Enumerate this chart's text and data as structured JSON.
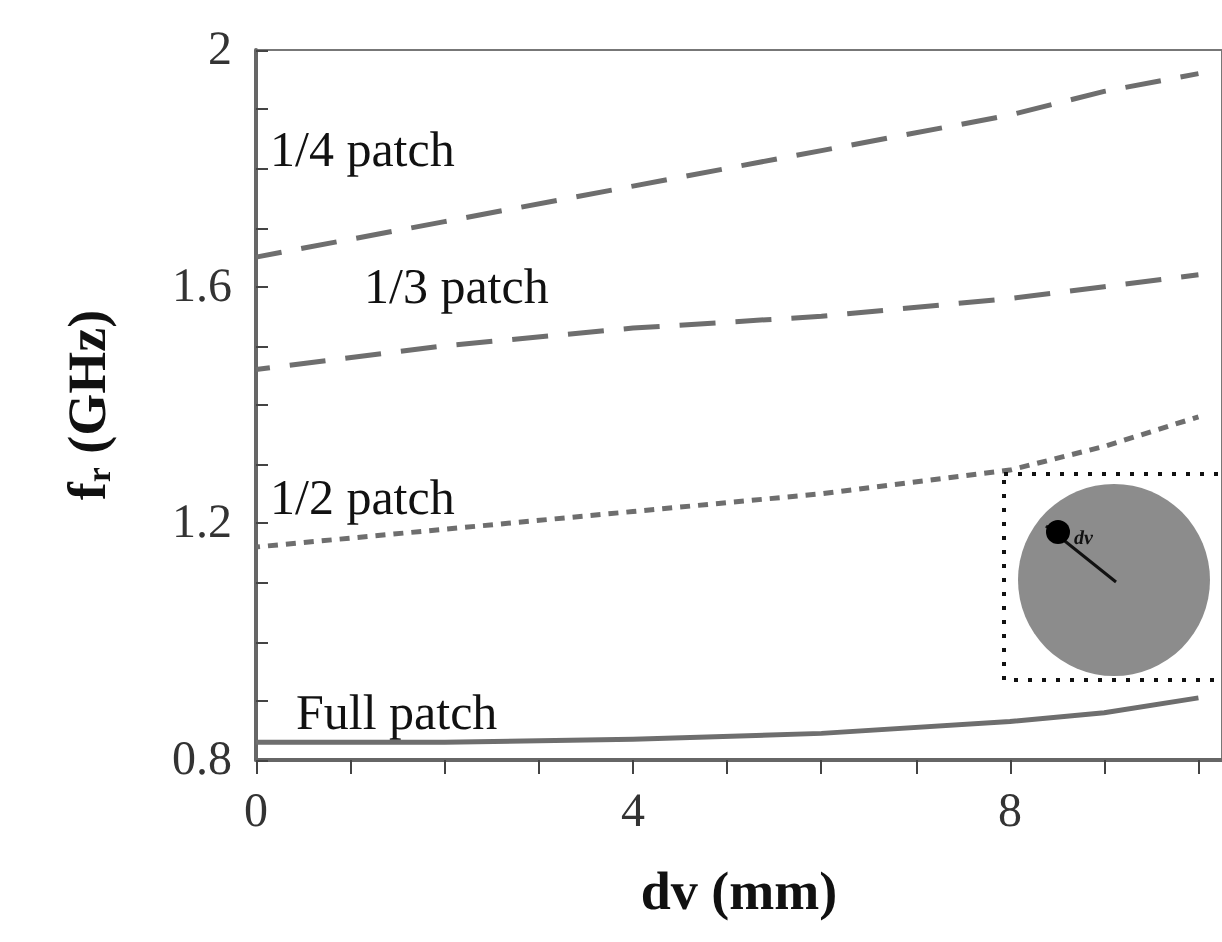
{
  "chart_data": {
    "type": "line",
    "xlabel": "dv (mm)",
    "ylabel": "f$_{r}$ (GHz)",
    "xlim": [
      0,
      10.25
    ],
    "ylim": [
      0.8,
      2
    ],
    "xticks": [
      0,
      {
        "value": 1,
        "label": null
      },
      {
        "value": 2,
        "label": null
      },
      {
        "value": 3,
        "label": null
      },
      4,
      {
        "value": 5,
        "label": null
      },
      {
        "value": 6,
        "label": null
      },
      {
        "value": 7,
        "label": null
      },
      8,
      {
        "value": 9,
        "label": null
      },
      {
        "value": 10,
        "label": null
      }
    ],
    "yticks": [
      0.8,
      {
        "value": 0.9,
        "label": null
      },
      {
        "value": 1,
        "label": null
      },
      {
        "value": 1.1,
        "label": null
      },
      1.2,
      {
        "value": 1.3,
        "label": null
      },
      {
        "value": 1.4,
        "label": null
      },
      {
        "value": 1.5,
        "label": null
      },
      1.6,
      {
        "value": 1.7,
        "label": null
      },
      {
        "value": 1.8,
        "label": null
      },
      {
        "value": 1.9,
        "label": null
      },
      2
    ],
    "grid": false,
    "marker": "none",
    "x": [
      0,
      2,
      4,
      6,
      8,
      9,
      10
    ],
    "series": [
      {
        "name": "1/4 patch",
        "color": "#6e6e6e",
        "line_style": "dashed",
        "values": [
          1.65,
          1.71,
          1.77,
          1.83,
          1.89,
          1.93,
          1.96
        ]
      },
      {
        "name": "1/3 patch",
        "color": "#6e6e6e",
        "line_style": "dashed",
        "values": [
          1.46,
          1.5,
          1.53,
          1.55,
          1.58,
          1.6,
          1.62
        ]
      },
      {
        "name": "1/2 patch",
        "color": "#6e6e6e",
        "line_style": "dotted",
        "values": [
          1.16,
          1.19,
          1.22,
          1.25,
          1.29,
          1.33,
          1.38
        ]
      },
      {
        "name": "Full patch",
        "color": "#6e6e6e",
        "line_style": "solid",
        "values": [
          0.83,
          0.83,
          0.835,
          0.845,
          0.865,
          0.88,
          0.905
        ]
      }
    ],
    "annotations": [
      "dv"
    ]
  }
}
